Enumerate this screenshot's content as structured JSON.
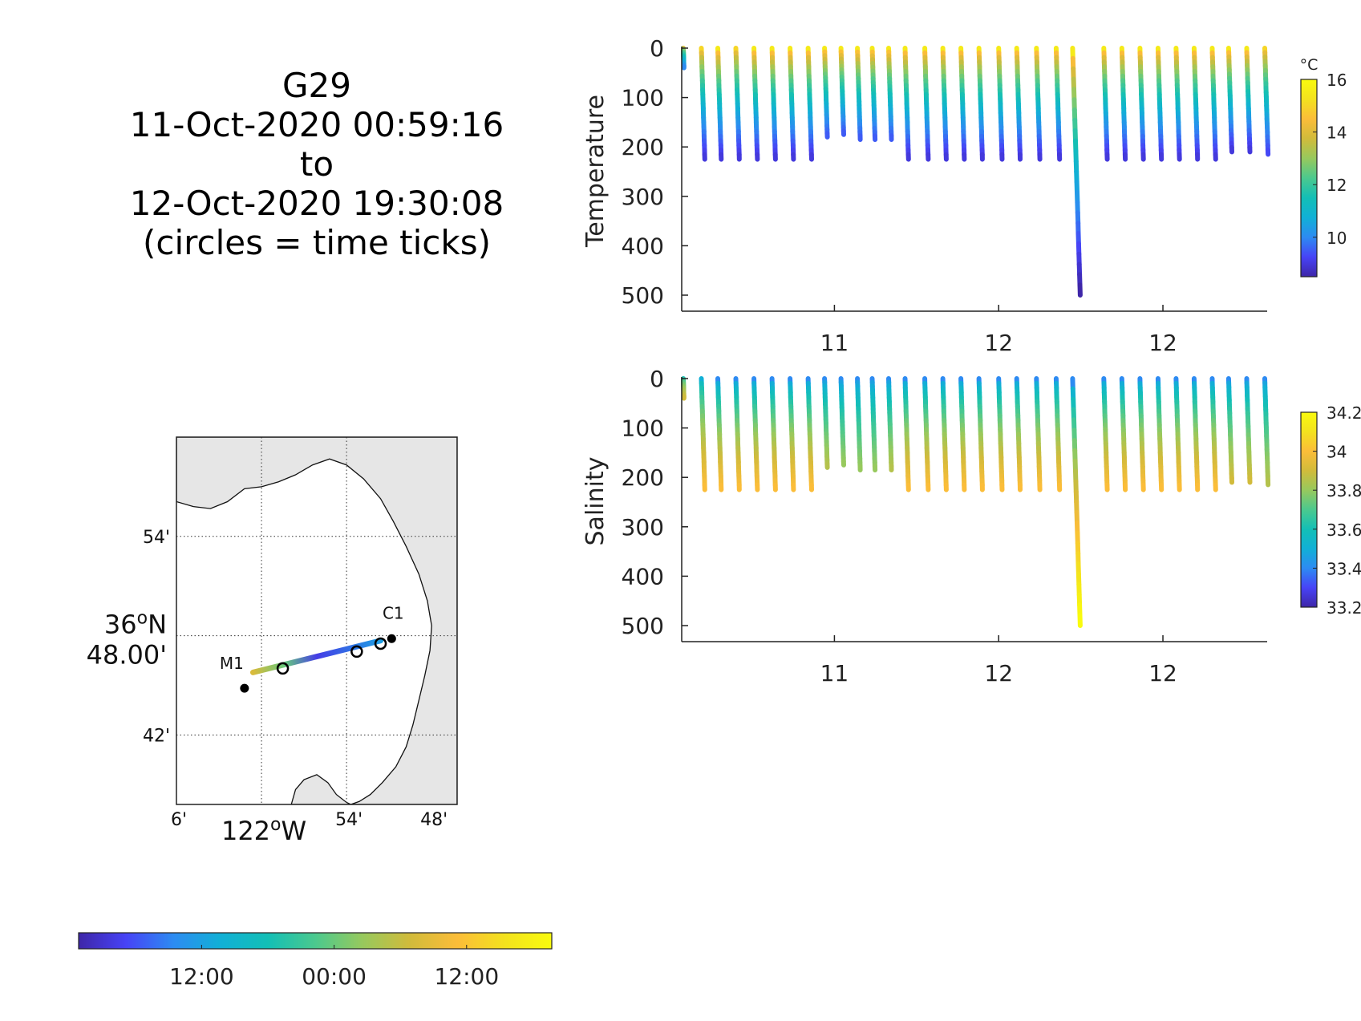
{
  "title": {
    "lines": [
      "G29",
      "11-Oct-2020 00:59:16",
      "to",
      "12-Oct-2020 19:30:08",
      "(circles = time ticks)"
    ]
  },
  "colormaps": {
    "parula": [
      "#3e26a8",
      "#4743f6",
      "#2d8bf2",
      "#11b0d6",
      "#13bfb6",
      "#4bc98e",
      "#97c95d",
      "#d1bb3b",
      "#fbbd39",
      "#f3e21e",
      "#f9fb0e"
    ]
  },
  "chart_data": [
    {
      "type": "scatter",
      "name": "temperature-section",
      "ylabel": "Temperature",
      "ylim": [
        0,
        520
      ],
      "yreversed": true,
      "yticks": [
        0,
        100,
        200,
        300,
        400,
        500
      ],
      "xticks": [
        {
          "x": 11,
          "label": "11"
        },
        {
          "x": 12,
          "label": "12"
        },
        {
          "x": 13,
          "label": "12"
        }
      ],
      "xlim": [
        10.08,
        13.62
      ],
      "colorbar": {
        "unit": "°C",
        "range": [
          8.5,
          16
        ],
        "ticks": [
          10,
          12,
          14,
          16
        ]
      },
      "profiles": [
        {
          "t": 10.08,
          "bottom": 40,
          "top_value": 14,
          "bottom_value": 10
        },
        {
          "t": 10.19,
          "bottom": 225,
          "top_value": 15,
          "bottom_value": 9
        },
        {
          "t": 10.29,
          "bottom": 225,
          "top_value": 15.5,
          "bottom_value": 9
        },
        {
          "t": 10.4,
          "bottom": 225,
          "top_value": 15,
          "bottom_value": 9
        },
        {
          "t": 10.51,
          "bottom": 225,
          "top_value": 15.5,
          "bottom_value": 9
        },
        {
          "t": 10.62,
          "bottom": 225,
          "top_value": 15.5,
          "bottom_value": 9
        },
        {
          "t": 10.73,
          "bottom": 225,
          "top_value": 15.5,
          "bottom_value": 9
        },
        {
          "t": 10.84,
          "bottom": 225,
          "top_value": 15.5,
          "bottom_value": 9
        },
        {
          "t": 10.94,
          "bottom": 180,
          "top_value": 15.5,
          "bottom_value": 9.5
        },
        {
          "t": 11.04,
          "bottom": 175,
          "top_value": 15.5,
          "bottom_value": 9.5
        },
        {
          "t": 11.14,
          "bottom": 185,
          "top_value": 15.5,
          "bottom_value": 9.5
        },
        {
          "t": 11.23,
          "bottom": 185,
          "top_value": 15.5,
          "bottom_value": 9.5
        },
        {
          "t": 11.33,
          "bottom": 185,
          "top_value": 15.5,
          "bottom_value": 9.5
        },
        {
          "t": 11.43,
          "bottom": 225,
          "top_value": 15.5,
          "bottom_value": 9
        },
        {
          "t": 11.55,
          "bottom": 225,
          "top_value": 15.5,
          "bottom_value": 9
        },
        {
          "t": 11.66,
          "bottom": 225,
          "top_value": 15.5,
          "bottom_value": 9
        },
        {
          "t": 11.77,
          "bottom": 225,
          "top_value": 15.5,
          "bottom_value": 9
        },
        {
          "t": 11.88,
          "bottom": 225,
          "top_value": 15.5,
          "bottom_value": 9
        },
        {
          "t": 12.0,
          "bottom": 225,
          "top_value": 15.5,
          "bottom_value": 9
        },
        {
          "t": 12.11,
          "bottom": 225,
          "top_value": 15.5,
          "bottom_value": 9
        },
        {
          "t": 12.23,
          "bottom": 225,
          "top_value": 15.5,
          "bottom_value": 9
        },
        {
          "t": 12.35,
          "bottom": 225,
          "top_value": 15.5,
          "bottom_value": 9
        },
        {
          "t": 12.45,
          "bottom": 500,
          "top_value": 15.5,
          "bottom_value": 8.5
        },
        {
          "t": 12.64,
          "bottom": 225,
          "top_value": 15.5,
          "bottom_value": 9
        },
        {
          "t": 12.75,
          "bottom": 225,
          "top_value": 15.5,
          "bottom_value": 9
        },
        {
          "t": 12.86,
          "bottom": 225,
          "top_value": 15.5,
          "bottom_value": 9
        },
        {
          "t": 12.97,
          "bottom": 225,
          "top_value": 15.5,
          "bottom_value": 9
        },
        {
          "t": 13.08,
          "bottom": 225,
          "top_value": 15.5,
          "bottom_value": 9
        },
        {
          "t": 13.19,
          "bottom": 225,
          "top_value": 15.5,
          "bottom_value": 9
        },
        {
          "t": 13.3,
          "bottom": 225,
          "top_value": 15.5,
          "bottom_value": 9
        },
        {
          "t": 13.4,
          "bottom": 210,
          "top_value": 15.5,
          "bottom_value": 9
        },
        {
          "t": 13.51,
          "bottom": 210,
          "top_value": 15.5,
          "bottom_value": 9
        },
        {
          "t": 13.62,
          "bottom": 215,
          "top_value": 15,
          "bottom_value": 9.3
        }
      ]
    },
    {
      "type": "scatter",
      "name": "salinity-section",
      "ylabel": "Salinity",
      "ylim": [
        0,
        520
      ],
      "yreversed": true,
      "yticks": [
        0,
        100,
        200,
        300,
        400,
        500
      ],
      "xticks": [
        {
          "x": 11,
          "label": "11"
        },
        {
          "x": 12,
          "label": "12"
        },
        {
          "x": 13,
          "label": "12"
        }
      ],
      "xlim": [
        10.08,
        13.62
      ],
      "colorbar": {
        "unit": "",
        "range": [
          33.2,
          34.2
        ],
        "ticks": [
          33.2,
          33.4,
          33.6,
          33.8,
          34,
          34.2
        ]
      },
      "profiles": [
        {
          "t": 10.08,
          "bottom": 40,
          "top_value": 33.6,
          "bottom_value": 33.9
        },
        {
          "t": 10.19,
          "bottom": 225,
          "top_value": 33.5,
          "bottom_value": 34.0
        },
        {
          "t": 10.29,
          "bottom": 225,
          "top_value": 33.4,
          "bottom_value": 34.0
        },
        {
          "t": 10.4,
          "bottom": 225,
          "top_value": 33.4,
          "bottom_value": 34.0
        },
        {
          "t": 10.51,
          "bottom": 225,
          "top_value": 33.4,
          "bottom_value": 34.0
        },
        {
          "t": 10.62,
          "bottom": 225,
          "top_value": 33.4,
          "bottom_value": 34.0
        },
        {
          "t": 10.73,
          "bottom": 225,
          "top_value": 33.4,
          "bottom_value": 34.0
        },
        {
          "t": 10.84,
          "bottom": 225,
          "top_value": 33.4,
          "bottom_value": 34.0
        },
        {
          "t": 10.94,
          "bottom": 180,
          "top_value": 33.4,
          "bottom_value": 33.85
        },
        {
          "t": 11.04,
          "bottom": 175,
          "top_value": 33.4,
          "bottom_value": 33.8
        },
        {
          "t": 11.14,
          "bottom": 185,
          "top_value": 33.4,
          "bottom_value": 33.8
        },
        {
          "t": 11.23,
          "bottom": 185,
          "top_value": 33.4,
          "bottom_value": 33.8
        },
        {
          "t": 11.33,
          "bottom": 185,
          "top_value": 33.4,
          "bottom_value": 33.85
        },
        {
          "t": 11.43,
          "bottom": 225,
          "top_value": 33.4,
          "bottom_value": 34.0
        },
        {
          "t": 11.55,
          "bottom": 225,
          "top_value": 33.4,
          "bottom_value": 34.0
        },
        {
          "t": 11.66,
          "bottom": 225,
          "top_value": 33.4,
          "bottom_value": 34.0
        },
        {
          "t": 11.77,
          "bottom": 225,
          "top_value": 33.4,
          "bottom_value": 34.0
        },
        {
          "t": 11.88,
          "bottom": 225,
          "top_value": 33.4,
          "bottom_value": 34.0
        },
        {
          "t": 12.0,
          "bottom": 225,
          "top_value": 33.4,
          "bottom_value": 34.0
        },
        {
          "t": 12.11,
          "bottom": 225,
          "top_value": 33.4,
          "bottom_value": 34.0
        },
        {
          "t": 12.23,
          "bottom": 225,
          "top_value": 33.4,
          "bottom_value": 34.0
        },
        {
          "t": 12.35,
          "bottom": 225,
          "top_value": 33.4,
          "bottom_value": 34.0
        },
        {
          "t": 12.45,
          "bottom": 500,
          "top_value": 33.4,
          "bottom_value": 34.2
        },
        {
          "t": 12.64,
          "bottom": 225,
          "top_value": 33.4,
          "bottom_value": 34.0
        },
        {
          "t": 12.75,
          "bottom": 225,
          "top_value": 33.4,
          "bottom_value": 34.0
        },
        {
          "t": 12.86,
          "bottom": 225,
          "top_value": 33.4,
          "bottom_value": 34.0
        },
        {
          "t": 12.97,
          "bottom": 225,
          "top_value": 33.4,
          "bottom_value": 34.0
        },
        {
          "t": 13.08,
          "bottom": 225,
          "top_value": 33.4,
          "bottom_value": 34.0
        },
        {
          "t": 13.19,
          "bottom": 225,
          "top_value": 33.4,
          "bottom_value": 34.0
        },
        {
          "t": 13.3,
          "bottom": 225,
          "top_value": 33.4,
          "bottom_value": 34.0
        },
        {
          "t": 13.4,
          "bottom": 210,
          "top_value": 33.4,
          "bottom_value": 33.9
        },
        {
          "t": 13.51,
          "bottom": 210,
          "top_value": 33.4,
          "bottom_value": 33.9
        },
        {
          "t": 13.62,
          "bottom": 215,
          "top_value": 33.4,
          "bottom_value": 33.85
        }
      ]
    },
    {
      "type": "map",
      "name": "track-map",
      "lon_range": [
        -122.1,
        -121.77
      ],
      "lat_range": [
        36.63,
        37.0
      ],
      "lon_gridlines": [
        -122.0,
        -121.9
      ],
      "lat_gridlines": [
        36.7,
        36.8,
        36.9
      ],
      "lon_ticklabels": [
        {
          "lon": -122.1,
          "label": "6'",
          "big": false
        },
        {
          "lon": -122.0,
          "label": "122°W",
          "big": true
        },
        {
          "lon": -121.9,
          "label": "54'",
          "big": false
        },
        {
          "lon": -121.8,
          "label": "48'",
          "big": false
        }
      ],
      "lat_ticklabels": [
        {
          "lat": 36.9,
          "label": "54'",
          "big": false
        },
        {
          "lat": 36.8,
          "label": "36°N",
          "label2": "48.00'",
          "big": true
        },
        {
          "lat": 36.7,
          "label": "42'",
          "big": false
        }
      ],
      "stations": [
        {
          "name": "M1",
          "lon": -122.02,
          "lat": 36.747
        },
        {
          "name": "C1",
          "lon": -121.847,
          "lat": 36.797
        }
      ],
      "track": {
        "start": {
          "lon": -122.01,
          "lat": 36.763,
          "time_frac": 0.72
        },
        "end": {
          "lon": -121.86,
          "lat": 36.795,
          "time_frac": 0.25
        }
      },
      "time_tick_circles": [
        {
          "lon": -121.975,
          "lat": 36.767
        },
        {
          "lon": -121.888,
          "lat": 36.784
        },
        {
          "lon": -121.86,
          "lat": 36.792
        }
      ]
    },
    {
      "type": "colorbar",
      "name": "time-colorbar",
      "ticks": [
        {
          "pos": 0.26,
          "label": "12:00"
        },
        {
          "pos": 0.54,
          "label": "00:00"
        },
        {
          "pos": 0.82,
          "label": "12:00"
        }
      ]
    }
  ]
}
